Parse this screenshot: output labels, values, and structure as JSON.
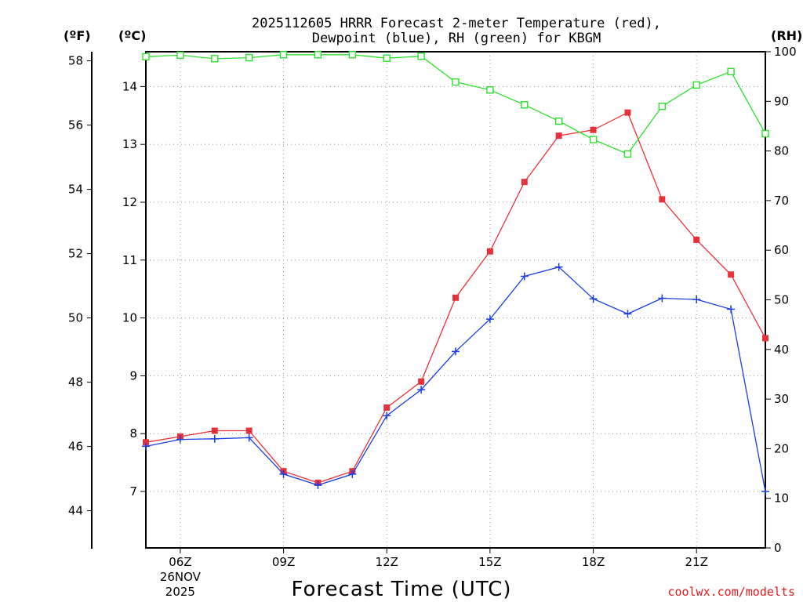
{
  "chart_data": {
    "type": "line",
    "title_line1": "2025112605 HRRR Forecast 2-meter Temperature (red),",
    "title_line2": "Dewpoint (blue), RH (green) for KBGM",
    "xlabel": "Forecast Time (UTC)",
    "credit": "coolwx.com/modelts",
    "units": {
      "fahrenheit": "(ºF)",
      "celsius": "(ºC)",
      "rh": "(RH)"
    },
    "x_range": [
      5,
      23
    ],
    "x_ticks": [
      {
        "x": 6,
        "label": "06Z",
        "sub1": "26NOV",
        "sub2": "2025"
      },
      {
        "x": 9,
        "label": "09Z"
      },
      {
        "x": 12,
        "label": "12Z"
      },
      {
        "x": 15,
        "label": "15Z"
      },
      {
        "x": 18,
        "label": "18Z"
      },
      {
        "x": 21,
        "label": "21Z"
      }
    ],
    "celsius_range": [
      6.0,
      14.5
    ],
    "celsius_ticks": [
      "7",
      "8",
      "9",
      "10",
      "11",
      "12",
      "13",
      "14"
    ],
    "fahrenheit_ticks": [
      "44",
      "46",
      "48",
      "50",
      "52",
      "54",
      "56",
      "58"
    ],
    "rh_range": [
      0,
      100
    ],
    "rh_ticks": [
      "0",
      "10",
      "20",
      "30",
      "40",
      "50",
      "60",
      "70",
      "80",
      "90",
      "100"
    ],
    "x": [
      5,
      6,
      7,
      8,
      9,
      10,
      11,
      12,
      13,
      14,
      15,
      16,
      17,
      18,
      19,
      20,
      21,
      22,
      23
    ],
    "series": [
      {
        "name": "Temperature",
        "unit": "C",
        "color": "#e8323a",
        "marker": "square-filled",
        "values": [
          7.85,
          7.95,
          8.05,
          8.05,
          7.35,
          7.15,
          7.35,
          8.45,
          8.9,
          10.35,
          11.15,
          12.35,
          13.15,
          13.25,
          13.55,
          12.05,
          11.35,
          10.75,
          9.65
        ]
      },
      {
        "name": "Dewpoint",
        "unit": "C",
        "color": "#1a3ee0",
        "marker": "plus",
        "values": [
          7.78,
          7.9,
          7.91,
          7.93,
          7.3,
          7.11,
          7.3,
          8.31,
          8.76,
          9.42,
          9.98,
          10.72,
          10.88,
          10.33,
          10.07,
          10.34,
          10.32,
          10.15,
          7.0
        ]
      },
      {
        "name": "Relative Humidity",
        "unit": "%",
        "color": "#2ee02e",
        "marker": "square-open",
        "values": [
          99.0,
          99.3,
          98.6,
          98.8,
          99.4,
          99.4,
          99.4,
          98.7,
          99.1,
          93.9,
          92.3,
          89.3,
          86.0,
          82.3,
          79.4,
          89.0,
          93.3,
          96.0,
          83.5
        ]
      }
    ]
  }
}
